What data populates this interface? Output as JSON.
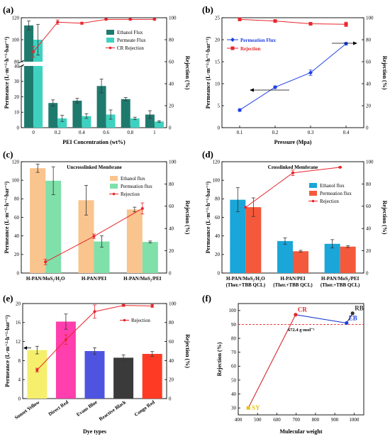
{
  "panels": {
    "a": {
      "label": "(a)"
    },
    "b": {
      "label": "(b)"
    },
    "c": {
      "label": "(c)"
    },
    "d": {
      "label": "(d)"
    },
    "e": {
      "label": "(e)"
    },
    "f": {
      "label": "(f)"
    }
  },
  "chart_data": [
    {
      "id": "a",
      "type": "bar",
      "xlabel": "PEI Concentration (wt%)",
      "ylabel": "Permeance (L·m⁻²·h⁻¹·bar⁻¹)",
      "y2label": "Rejection (%)",
      "categories": [
        "0",
        "0.2",
        "0.4",
        "0.6",
        "0.8",
        "1"
      ],
      "broken_axis": {
        "lower": [
          0,
          40
        ],
        "upper": [
          80,
          120
        ]
      },
      "yticks_lower": [
        0,
        10,
        20,
        30,
        40
      ],
      "yticks_upper": [
        80,
        100,
        120
      ],
      "y2lim": [
        0,
        100
      ],
      "y2ticks": [
        0,
        20,
        40,
        60,
        80,
        100
      ],
      "legend_position": "upper-right",
      "series": [
        {
          "name": "Ethanol Flux",
          "kind": "bar",
          "color": "#1f7a6e",
          "values": [
            113,
            16,
            17.5,
            27,
            18.5,
            8.5
          ],
          "errors": [
            4,
            2,
            1.5,
            4.5,
            1,
            2.5
          ]
        },
        {
          "name": "Permeate Flux",
          "kind": "bar",
          "color": "#3fd1c0",
          "values": [
            100,
            6,
            7.5,
            8.5,
            6,
            4
          ],
          "errors": [
            14,
            2,
            1.5,
            3,
            0.8,
            0.5
          ]
        },
        {
          "name": "CR Rejection",
          "kind": "line",
          "color": "#e8252b",
          "values": [
            69,
            96,
            95,
            98.5,
            98.5,
            98.5
          ],
          "errors": [
            5,
            2,
            1,
            0.5,
            0.5,
            0.5
          ]
        }
      ]
    },
    {
      "id": "b",
      "type": "line",
      "xlabel": "Pressure (Mpa)",
      "ylabel": "Permeance (L·m⁻²·h⁻¹·bar⁻¹)",
      "y2label": "Rejection (%)",
      "x": [
        0.1,
        0.2,
        0.3,
        0.4
      ],
      "xlim": [
        0.05,
        0.45
      ],
      "xticks": [
        0.1,
        0.2,
        0.3,
        0.4
      ],
      "ylim": [
        0,
        25
      ],
      "yticks": [
        0,
        5,
        10,
        15,
        20,
        25
      ],
      "y2lim": [
        0,
        100
      ],
      "y2ticks": [
        0,
        20,
        40,
        60,
        80,
        100
      ],
      "series": [
        {
          "name": "Permeation Flux",
          "axis": "left",
          "color": "#1f3ee6",
          "marker": "diamond",
          "values": [
            4,
            9.2,
            12.5,
            19.1
          ],
          "errors": [
            0.3,
            0.3,
            0.6,
            0.3
          ]
        },
        {
          "name": "Rejection",
          "axis": "right",
          "color": "#e8252b",
          "marker": "square",
          "values": [
            98.5,
            97,
            94.5,
            94
          ],
          "errors": [
            0.5,
            1.2,
            0.5,
            2
          ]
        }
      ]
    },
    {
      "id": "c",
      "type": "bar",
      "title": "Uncrosslinked Membrane",
      "ylabel": "Permeance (L·m⁻²·h⁻¹·bar⁻¹)",
      "y2label": "Rejection (%)",
      "categories": [
        "H-PAN/MoS₂/H₂O",
        "H-PAN/PEI",
        "H-PAN/MoS₂/PEI"
      ],
      "ylim": [
        0,
        120
      ],
      "yticks": [
        0,
        20,
        40,
        60,
        80,
        100,
        120
      ],
      "y2lim": [
        0,
        100
      ],
      "y2ticks": [
        0,
        20,
        40,
        60,
        80,
        100
      ],
      "series": [
        {
          "name": "Ethanol flux",
          "kind": "bar",
          "color": "#fac48e",
          "values": [
            113,
            78.5,
            68.5
          ],
          "errors": [
            4.5,
            16,
            2.5
          ]
        },
        {
          "name": "Permeation flux",
          "kind": "bar",
          "color": "#7fe0a9",
          "values": [
            99.5,
            34,
            33.5
          ],
          "errors": [
            15,
            6,
            1
          ]
        },
        {
          "name": "Rejection",
          "kind": "line",
          "color": "#e8252b",
          "values": [
            10,
            33,
            58
          ],
          "errors": [
            2.5,
            2,
            5
          ]
        }
      ]
    },
    {
      "id": "d",
      "type": "bar",
      "title": "Crosslinked Membrane",
      "ylabel": "Permeance (L·m⁻²·h⁻¹·bar⁻¹)",
      "y2label": "Rejection (%)",
      "categories": [
        "H-PAN/MoS₂/H₂O (Ther.+TBB QCL)",
        "H-PAN/PEI (Ther.+TBB QCL)",
        "H-PAN/MoS₂/PEI (Ther.+TBB QCL)"
      ],
      "ylim": [
        0,
        120
      ],
      "yticks": [
        0,
        20,
        40,
        60,
        80,
        100,
        120
      ],
      "y2lim": [
        0,
        100
      ],
      "y2ticks": [
        0,
        20,
        40,
        60,
        80,
        100
      ],
      "series": [
        {
          "name": "Ethanol flux",
          "kind": "bar",
          "color": "#1aa6d9",
          "values": [
            79,
            34.5,
            31.5
          ],
          "errors": [
            13,
            3.5,
            4.5
          ]
        },
        {
          "name": "Permeation flux",
          "kind": "bar",
          "color": "#f4593b",
          "values": [
            71,
            23.5,
            28.5
          ],
          "errors": [
            10,
            1,
            1
          ]
        },
        {
          "name": "Rejection",
          "kind": "line",
          "color": "#e8252b",
          "values": [
            59,
            90,
            95
          ],
          "errors": [
            0,
            2.5,
            0.5
          ]
        }
      ]
    },
    {
      "id": "e",
      "type": "bar",
      "xlabel": "Dye types",
      "ylabel": "Permeance (L·m⁻²·h⁻¹·bar⁻¹)",
      "y2label": "Rejection (%)",
      "categories": [
        "Sunset Yellow",
        "Direct Red",
        "Evans Blue",
        "Reactive Black",
        "Congo Red"
      ],
      "ylim": [
        0,
        20
      ],
      "yticks": [
        0,
        4,
        8,
        12,
        16,
        20
      ],
      "y2lim": [
        0,
        100
      ],
      "y2ticks": [
        0,
        20,
        40,
        60,
        80,
        100
      ],
      "series": [
        {
          "name": "Permeance",
          "kind": "bar",
          "colors": [
            "#f5ef6c",
            "#ff3fae",
            "#4f54e0",
            "#3a3a3a",
            "#ff3a24"
          ],
          "values": [
            10.2,
            16.2,
            10,
            8.6,
            9.4
          ],
          "errors": [
            0.8,
            1.6,
            0.7,
            0.6,
            0.5
          ]
        },
        {
          "name": "Rejection",
          "kind": "line",
          "color": "#e8252b",
          "values": [
            30,
            62,
            91.5,
            98,
            97.5
          ],
          "errors": [
            2,
            5,
            7,
            1,
            1.5
          ]
        }
      ]
    },
    {
      "id": "f",
      "type": "scatter",
      "xlabel": "Mulecular weight",
      "ylabel": "Rejection (%)",
      "xlim": [
        400,
        1050
      ],
      "xticks": [
        400,
        500,
        600,
        700,
        800,
        900,
        1000
      ],
      "ylim": [
        25,
        105
      ],
      "yticks": [
        30,
        40,
        50,
        60,
        70,
        80,
        90,
        100
      ],
      "reference_line": {
        "y": 90,
        "color": "#e8252b",
        "style": "dashed"
      },
      "annotation": "672.4 g·mol⁻¹",
      "points": [
        {
          "label": "SY",
          "x": 452,
          "y": 30,
          "color": "#e8c21a"
        },
        {
          "label": "CR",
          "x": 697,
          "y": 97,
          "color": "#e8252b"
        },
        {
          "label": "EB",
          "x": 961,
          "y": 91,
          "color": "#1f3ee6"
        },
        {
          "label": "RB",
          "x": 992,
          "y": 98,
          "color": "#333333"
        }
      ]
    }
  ]
}
